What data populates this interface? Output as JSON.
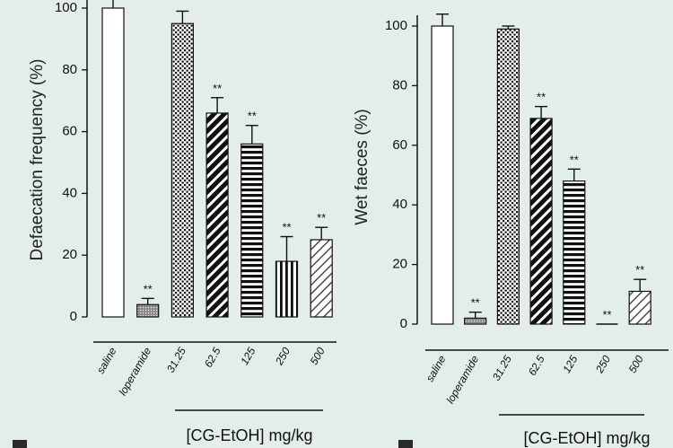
{
  "chart_data": [
    {
      "type": "bar",
      "ylabel": "Defaecation frequency (%)",
      "ylim": [
        0,
        100
      ],
      "yticks": [
        0,
        20,
        40,
        60,
        80,
        100
      ],
      "categories": [
        "saline",
        "loperamide",
        "31.25",
        "62.5",
        "125",
        "250",
        "500"
      ],
      "values": [
        100,
        4,
        95,
        66,
        56,
        18,
        25
      ],
      "errors": [
        4,
        2,
        4,
        5,
        6,
        8,
        4
      ],
      "significance": [
        "",
        "**",
        "",
        "**",
        "**",
        "**",
        "**"
      ],
      "group_label": "[CG-EtOH] mg/kg",
      "grid": false
    },
    {
      "type": "bar",
      "ylabel": "Wet faeces (%)",
      "ylim": [
        0,
        100
      ],
      "yticks": [
        0,
        20,
        40,
        60,
        80,
        100
      ],
      "categories": [
        "saline",
        "loperamide",
        "31.25",
        "62.5",
        "125",
        "250",
        "500"
      ],
      "values": [
        100,
        2,
        99,
        69,
        48,
        0,
        11
      ],
      "errors": [
        4,
        2,
        1,
        4,
        4,
        0,
        4
      ],
      "significance": [
        "",
        "**",
        "",
        "**",
        "**",
        "**",
        "**"
      ],
      "group_label": "[CG-EtOH] mg/kg",
      "grid": false
    }
  ],
  "colors": {
    "background": "#e3eee9",
    "ink": "#111111",
    "bar_fill": "#ffffff"
  }
}
